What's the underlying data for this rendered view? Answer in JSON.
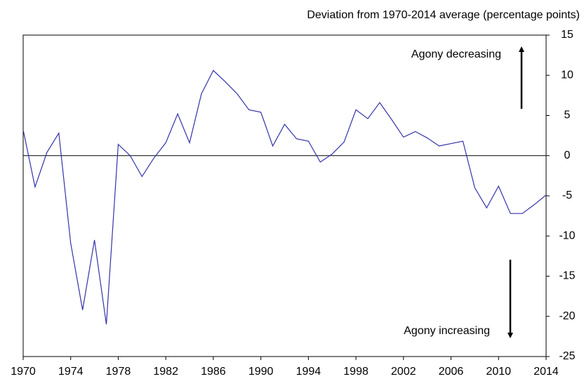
{
  "chart_data": {
    "type": "line",
    "y_axis_label": "Deviation from 1970-2014 average (percentage points)",
    "annotations": [
      "Agony decreasing",
      "Agony increasing"
    ],
    "x": [
      1970,
      1971,
      1972,
      1973,
      1974,
      1975,
      1976,
      1977,
      1978,
      1979,
      1980,
      1981,
      1982,
      1983,
      1984,
      1985,
      1986,
      1987,
      1988,
      1989,
      1990,
      1991,
      1992,
      1993,
      1994,
      1995,
      1996,
      1997,
      1998,
      1999,
      2000,
      2001,
      2002,
      2003,
      2004,
      2005,
      2006,
      2007,
      2008,
      2009,
      2010,
      2011,
      2012,
      2013,
      2014
    ],
    "series": [
      {
        "color": "#3333aa",
        "values": [
          3.2,
          -3.9,
          0.4,
          2.8,
          -10.9,
          -19.2,
          -10.5,
          -21.0,
          1.4,
          0.0,
          -2.6,
          -0.3,
          1.6,
          5.2,
          1.6,
          7.7,
          10.6,
          9.2,
          7.7,
          5.7,
          5.4,
          1.2,
          3.9,
          2.1,
          1.8,
          -0.8,
          0.2,
          1.7,
          5.7,
          4.6,
          6.6,
          4.5,
          2.3,
          3.0,
          2.2,
          1.2,
          1.5,
          1.8,
          -4.0,
          -6.5,
          -3.8,
          -7.2,
          -7.2,
          -6.1,
          -4.9
        ]
      }
    ],
    "xlim": [
      1970,
      2014
    ],
    "xticks": [
      1970,
      1974,
      1978,
      1982,
      1986,
      1990,
      1994,
      1998,
      2002,
      2006,
      2010,
      2014
    ],
    "ylim": [
      -25,
      15
    ],
    "yticks": [
      -25,
      -20,
      -15,
      -10,
      -5,
      0,
      5,
      10,
      15
    ]
  }
}
